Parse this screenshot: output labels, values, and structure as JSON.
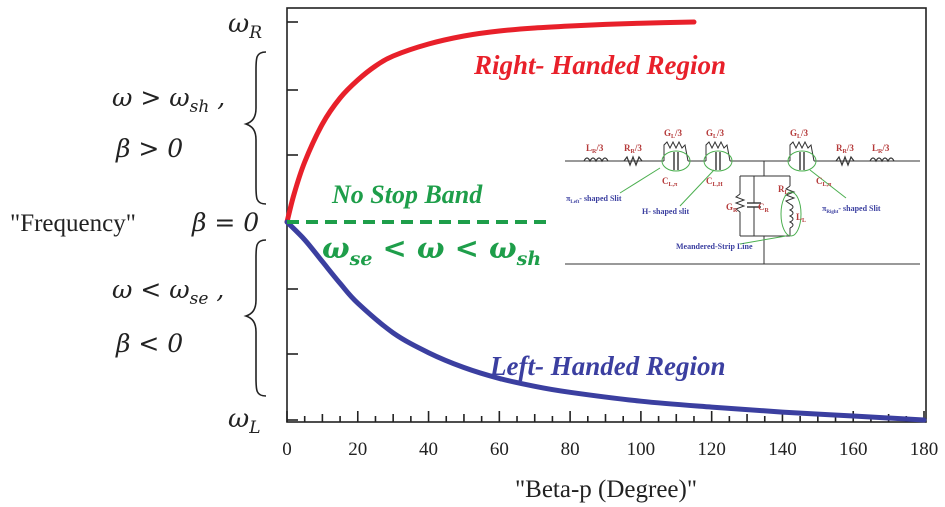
{
  "chart_data": {
    "type": "line",
    "title": "",
    "xlabel": "\"Beta-p (Degree)\"",
    "ylabel": "\"Frequency\"",
    "xlim": [
      0,
      180
    ],
    "x_ticks": [
      "0",
      "20",
      "40",
      "60",
      "80",
      "100",
      "120",
      "140",
      "160",
      "180"
    ],
    "y_labels": {
      "top": "ω",
      "top_sub": "R",
      "zero": "β = 0",
      "bottom": "ω",
      "bottom_sub": "L"
    },
    "upper_brace": {
      "line1": "ω > ω",
      "line1_sub": "sh",
      "line1_tail": " ,",
      "line2": "β > 0"
    },
    "lower_brace": {
      "line1": "ω < ω",
      "line1_sub": "se",
      "line1_tail": " ,",
      "line2": "β < 0"
    },
    "series": [
      {
        "label": "Right- Handed Region",
        "color": "#e8202a",
        "x": [
          0,
          2,
          5,
          10,
          15,
          20,
          25,
          30,
          40,
          50,
          60,
          70,
          80,
          90,
          100,
          115
        ],
        "y": [
          0,
          0.14,
          0.3,
          0.49,
          0.62,
          0.71,
          0.78,
          0.83,
          0.89,
          0.93,
          0.955,
          0.97,
          0.98,
          0.988,
          0.994,
          1.0
        ]
      },
      {
        "label": "Left- Handed Region",
        "color": "#3b3fa0",
        "x": [
          0,
          5,
          10,
          15,
          20,
          30,
          40,
          50,
          60,
          70,
          80,
          100,
          120,
          140,
          160,
          180
        ],
        "y": [
          0,
          -0.09,
          -0.2,
          -0.31,
          -0.41,
          -0.56,
          -0.66,
          -0.735,
          -0.79,
          -0.83,
          -0.86,
          -0.905,
          -0.935,
          -0.96,
          -0.98,
          -1.0
        ]
      }
    ],
    "annotation": {
      "text": "No Stop Band",
      "condition": "ω",
      "condition_sub1": "se",
      "condition_mid": " < ω < ω",
      "condition_sub2": "sh",
      "color": "#1e9e4a",
      "xrange": [
        0,
        75
      ]
    },
    "inset_circuit": {
      "labels": [
        "L",
        "R",
        "G",
        "G",
        "G",
        "R",
        "L"
      ],
      "label_text": {
        "LR3": "L",
        "LR3_sub": "R",
        "LR3_tail": "/3",
        "RR3": "R",
        "RR3_sub": "R",
        "RR3_tail": "/3",
        "GL3": "G",
        "GL3_sub": "L",
        "GL3_tail": "/3",
        "CL_left": "C",
        "CL_left_sub": "L,π",
        "CL_mid": "C",
        "CL_mid_sub": "L,H",
        "CL_right": "C",
        "CL_right_sub": "L,π",
        "GR": "G",
        "GR_sub": "R",
        "CR": "C",
        "CR_sub": "R",
        "RL": "R",
        "RL_sub": "L",
        "LL": "L",
        "LL_sub": "L",
        "pi_left": "π",
        "pi_left_sub": "Left",
        "pi_left_tail": "- shaped Slit",
        "h_slit": "H- shaped slit",
        "pi_right": "π",
        "pi_right_sub": "Right",
        "pi_right_tail": "- shaped Slit",
        "meander": "Meandered-Strip Line"
      }
    }
  }
}
